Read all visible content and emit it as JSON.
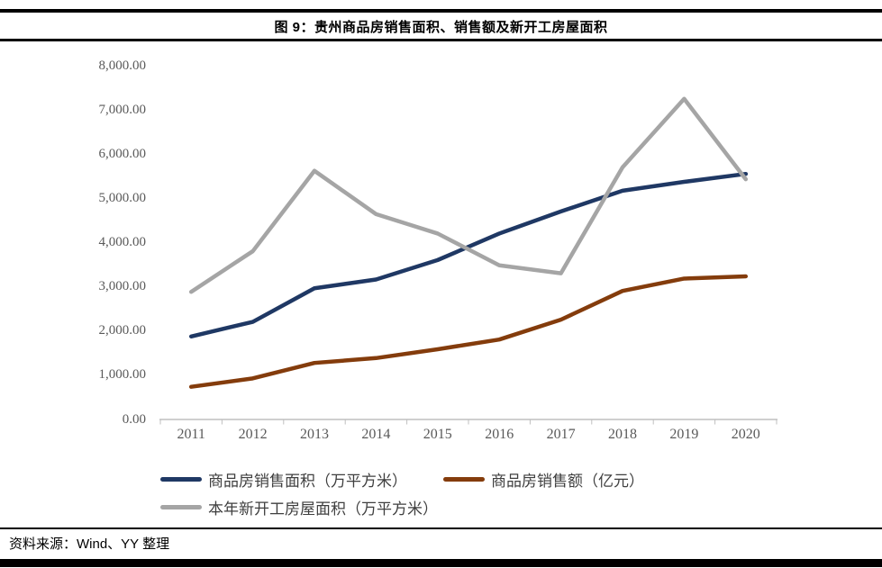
{
  "header": {
    "title": "图 9：贵州商品房销售面积、销售额及新开工房屋面积"
  },
  "footer": {
    "source": "资料来源：Wind、YY 整理"
  },
  "chart_data": {
    "type": "line",
    "title": "图 9：贵州商品房销售面积、销售额及新开工房屋面积",
    "categories": [
      "2011",
      "2012",
      "2013",
      "2014",
      "2015",
      "2016",
      "2017",
      "2018",
      "2019",
      "2020"
    ],
    "series": [
      {
        "name": "商品房销售面积（万平方米）",
        "color": "#1F3864",
        "values": [
          1870,
          2200,
          2960,
          3160,
          3600,
          4200,
          4700,
          5170,
          5370,
          5550
        ]
      },
      {
        "name": "商品房销售额（亿元）",
        "color": "#843C0C",
        "values": [
          730,
          920,
          1270,
          1380,
          1580,
          1800,
          2250,
          2900,
          3180,
          3230
        ]
      },
      {
        "name": "本年新开工房屋面积（万平方米）",
        "color": "#A5A5A5",
        "values": [
          2880,
          3800,
          5620,
          4640,
          4200,
          3480,
          3300,
          5700,
          7250,
          5430
        ]
      }
    ],
    "ylim": [
      0,
      8000
    ],
    "y_tick_step": 1000,
    "y_tick_labels": [
      "0.00",
      "1,000.00",
      "2,000.00",
      "3,000.00",
      "4,000.00",
      "5,000.00",
      "6,000.00",
      "7,000.00",
      "8,000.00"
    ],
    "grid": false,
    "legend_position": "bottom-left",
    "axis_color": "#BFBFBF",
    "tick_label_color": "#595959",
    "line_width": 4.5
  }
}
